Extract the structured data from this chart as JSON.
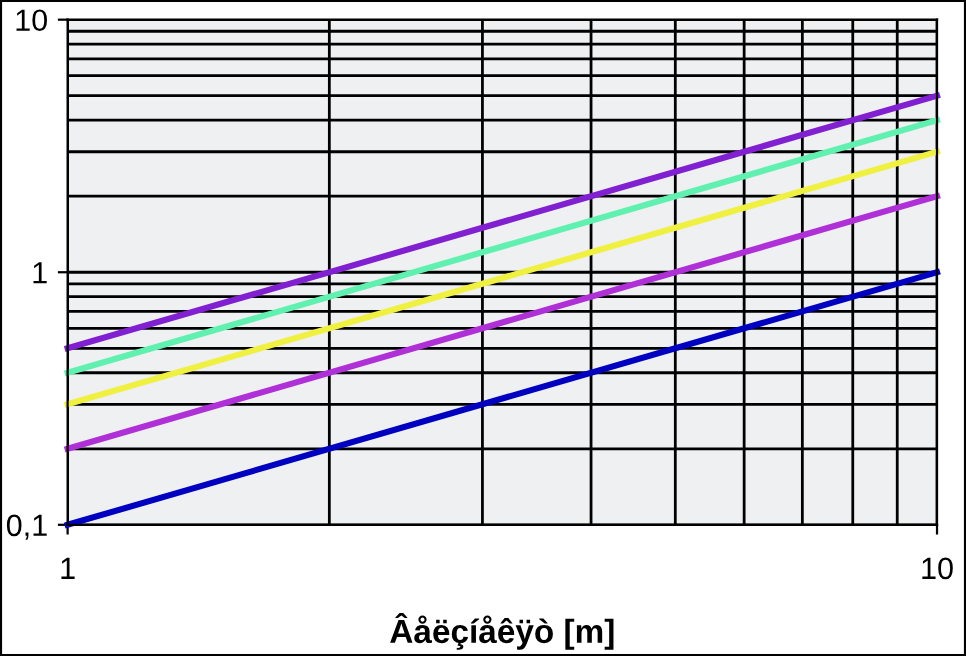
{
  "chart_data": {
    "type": "line",
    "xlabel": "Âåëçíåêÿò [m]",
    "log": "xy",
    "grid": true,
    "legend": false,
    "marker": "none",
    "line_style": "solid",
    "xlim": [
      1,
      10
    ],
    "ylim": [
      0.1,
      10
    ],
    "xticks": [
      1,
      10
    ],
    "yticks": [
      {
        "value": 0.1,
        "label": "0,1"
      },
      1,
      10
    ],
    "x": [
      1,
      10
    ],
    "series": [
      {
        "color": "#0000c0",
        "values": [
          0.1,
          1
        ]
      },
      {
        "color": "#b030d8",
        "values": [
          0.2,
          2
        ]
      },
      {
        "color": "#f0f040",
        "values": [
          0.3,
          3
        ]
      },
      {
        "color": "#60f0b0",
        "values": [
          0.4,
          4
        ]
      },
      {
        "color": "#8020d0",
        "values": [
          0.5,
          5
        ]
      }
    ]
  }
}
